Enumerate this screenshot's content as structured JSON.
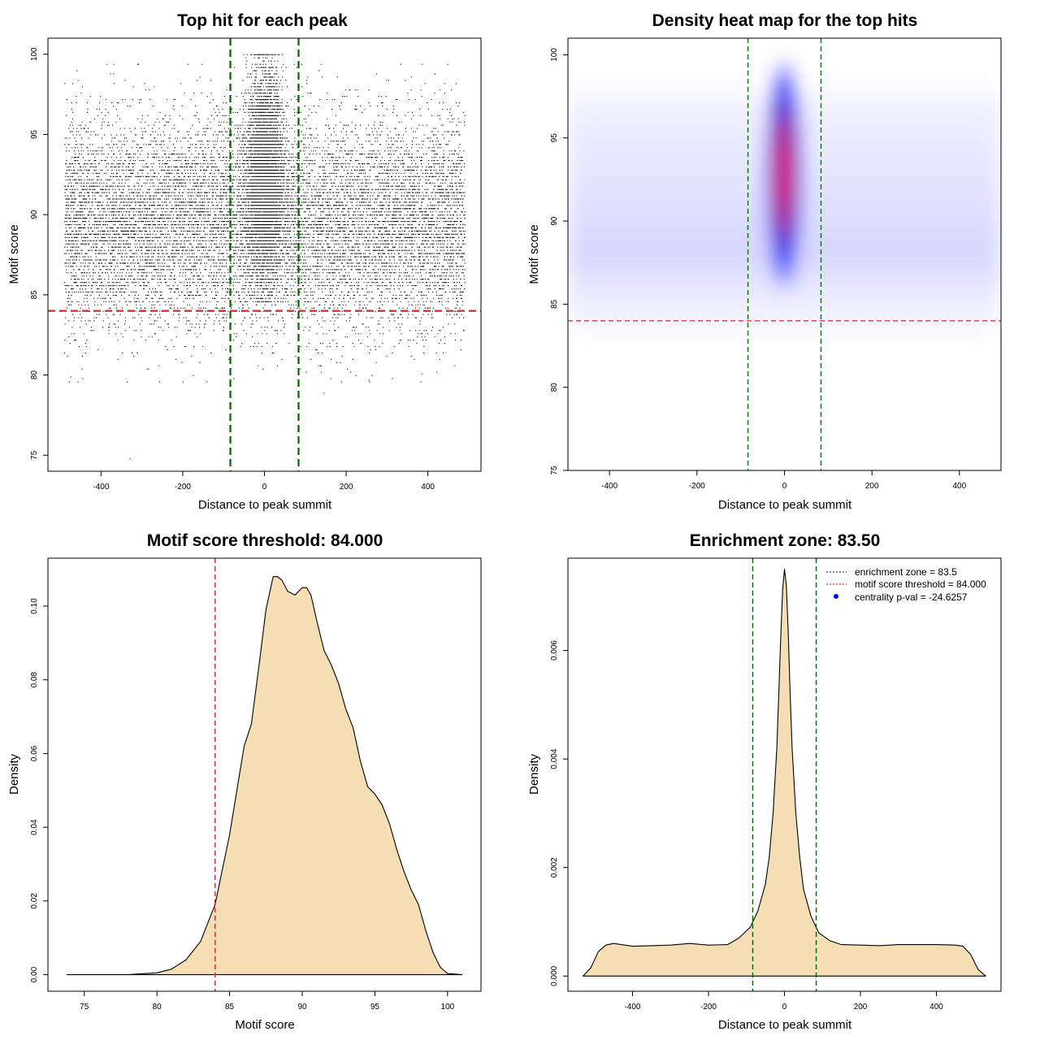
{
  "chart_data": [
    {
      "type": "scatter",
      "title": "Top hit for each peak",
      "xlabel": "Distance to peak summit",
      "ylabel": "Motif score",
      "xlim": [
        -530,
        530
      ],
      "ylim": [
        74,
        101
      ],
      "xticks": [
        -400,
        -200,
        0,
        200,
        400
      ],
      "yticks": [
        75,
        80,
        85,
        90,
        95,
        100
      ],
      "hlines": [
        {
          "y": 84,
          "color": "#d62728",
          "style": "dashed"
        }
      ],
      "vlines": [
        {
          "x": -83.5,
          "color": "#006400",
          "style": "dashed"
        },
        {
          "x": 83.5,
          "color": "#006400",
          "style": "dashed"
        }
      ],
      "point_color": "#000000",
      "distribution": {
        "background": {
          "x_range": [
            -490,
            490
          ],
          "score_mean": 89.5,
          "score_sd": 3.2,
          "score_range": [
            79.5,
            99.3
          ]
        },
        "central": {
          "x_mean": 0,
          "x_sd": 22,
          "score_mean": 92.5,
          "score_sd": 3.2,
          "score_range": [
            84.5,
            100
          ]
        },
        "outliers": [
          {
            "x": -330,
            "y": 74.8
          },
          {
            "x": 145,
            "y": 78.9
          },
          {
            "x": 255,
            "y": 79.7
          },
          {
            "x": -475,
            "y": 79.9
          },
          {
            "x": 385,
            "y": 80.1
          }
        ]
      }
    },
    {
      "type": "heatmap",
      "title": "Density heat map for the top hits",
      "xlabel": "Distance to peak summit",
      "ylabel": "Motif score",
      "xlim": [
        -495,
        495
      ],
      "ylim": [
        75,
        101
      ],
      "xticks": [
        -400,
        -200,
        0,
        200,
        400
      ],
      "yticks": [
        75,
        80,
        85,
        90,
        95,
        100
      ],
      "colorscale": [
        "#ffffff",
        "#0000ff",
        "#ff0000"
      ],
      "hlines": [
        {
          "y": 84,
          "color": "#d62728",
          "style": "dashed"
        }
      ],
      "vlines": [
        {
          "x": -83.5,
          "color": "#006400",
          "style": "dashed"
        },
        {
          "x": 83.5,
          "color": "#006400",
          "style": "dashed"
        }
      ],
      "peak": {
        "x": 0,
        "y": 92
      }
    },
    {
      "type": "area",
      "title": "Motif score threshold: 84.000",
      "xlabel": "Motif score",
      "ylabel": "Density",
      "xlim": [
        72.5,
        102.3
      ],
      "ylim": [
        -0.0045,
        0.113
      ],
      "xticks": [
        75,
        80,
        85,
        90,
        95,
        100
      ],
      "yticks": [
        0.0,
        0.02,
        0.04,
        0.06,
        0.08,
        0.1
      ],
      "ytick_labels": [
        "0.00",
        "0.02",
        "0.04",
        "0.06",
        "0.08",
        "0.10"
      ],
      "fill": "#f5deb3",
      "vlines": [
        {
          "x": 84,
          "color": "#d62728",
          "style": "dashed"
        }
      ],
      "x": [
        73.8,
        78,
        80,
        81,
        82,
        83,
        84,
        85,
        86,
        86.5,
        87,
        87.5,
        88,
        88.3,
        88.6,
        89,
        89.5,
        90,
        90.3,
        90.6,
        91,
        91.5,
        92,
        92.5,
        93,
        93.5,
        94,
        94.5,
        95,
        95.5,
        96,
        96.5,
        97,
        97.5,
        98,
        98.5,
        99,
        99.5,
        100,
        101
      ],
      "y": [
        0,
        0,
        0.0005,
        0.0015,
        0.004,
        0.009,
        0.019,
        0.038,
        0.062,
        0.068,
        0.083,
        0.099,
        0.108,
        0.108,
        0.107,
        0.104,
        0.103,
        0.105,
        0.105,
        0.103,
        0.096,
        0.088,
        0.084,
        0.079,
        0.072,
        0.067,
        0.058,
        0.051,
        0.049,
        0.046,
        0.041,
        0.034,
        0.028,
        0.023,
        0.019,
        0.012,
        0.006,
        0.002,
        0.0003,
        0
      ]
    },
    {
      "type": "area",
      "title": "Enrichment zone: 83.50",
      "xlabel": "Distance to peak summit",
      "ylabel": "Density",
      "xlim": [
        -570,
        570
      ],
      "ylim": [
        -0.00028,
        0.0077
      ],
      "xticks": [
        -400,
        -200,
        0,
        200,
        400
      ],
      "yticks": [
        0.0,
        0.002,
        0.004,
        0.006
      ],
      "ytick_labels": [
        "0.000",
        "0.002",
        "0.004",
        "0.006"
      ],
      "fill": "#f5deb3",
      "vlines": [
        {
          "x": -83.5,
          "color": "#006400",
          "style": "dashed"
        },
        {
          "x": 83.5,
          "color": "#006400",
          "style": "dashed"
        }
      ],
      "x": [
        -530,
        -510,
        -490,
        -470,
        -450,
        -400,
        -350,
        -300,
        -250,
        -200,
        -150,
        -120,
        -90,
        -70,
        -50,
        -40,
        -30,
        -20,
        -15,
        -10,
        -5,
        0,
        5,
        10,
        15,
        20,
        30,
        40,
        50,
        70,
        90,
        120,
        150,
        200,
        250,
        300,
        350,
        400,
        450,
        470,
        490,
        510,
        530
      ],
      "y": [
        0,
        0.00015,
        0.00045,
        0.00057,
        0.0006,
        0.00055,
        0.00056,
        0.00057,
        0.0006,
        0.00057,
        0.00058,
        0.0007,
        0.0009,
        0.0012,
        0.0017,
        0.0022,
        0.003,
        0.0042,
        0.0052,
        0.0062,
        0.0071,
        0.0075,
        0.0072,
        0.0063,
        0.0052,
        0.0042,
        0.003,
        0.0022,
        0.0016,
        0.0011,
        0.0008,
        0.00065,
        0.00058,
        0.00057,
        0.00056,
        0.00058,
        0.00058,
        0.00058,
        0.00057,
        0.00055,
        0.0004,
        0.00012,
        0
      ],
      "legend": [
        {
          "label": "enrichment zone = 83.5",
          "color": "#006400",
          "kind": "dotted-line"
        },
        {
          "label": "motif score threshold = 84.000",
          "color": "#d62728",
          "kind": "dotted-line"
        },
        {
          "label": "centrality p-val = -24.6257",
          "color": "#0000ff",
          "kind": "point"
        }
      ],
      "legend_position": "top-right"
    }
  ]
}
